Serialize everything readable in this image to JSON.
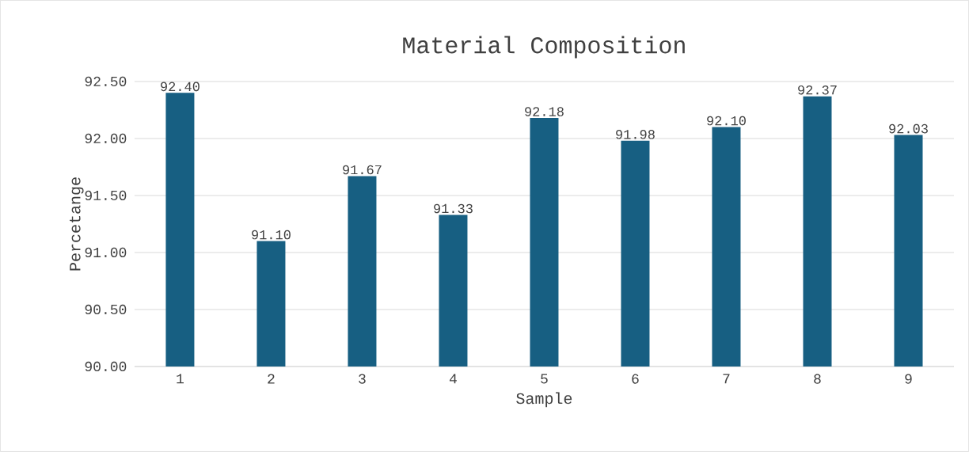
{
  "chart_data": {
    "type": "bar",
    "title": "Material Composition",
    "xlabel": "Sample",
    "ylabel": "Percetange",
    "categories": [
      "1",
      "2",
      "3",
      "4",
      "5",
      "6",
      "7",
      "8",
      "9"
    ],
    "values": [
      92.4,
      91.1,
      91.67,
      91.33,
      92.18,
      91.98,
      92.1,
      92.37,
      92.03
    ],
    "value_labels": [
      "92.40",
      "91.10",
      "91.67",
      "91.33",
      "92.18",
      "91.98",
      "92.10",
      "92.37",
      "92.03"
    ],
    "color": "#175f82",
    "ylim": [
      90,
      92.5
    ],
    "yticks": [
      {
        "value": 90,
        "label": "90.00"
      },
      {
        "value": 90.5,
        "label": "90.50"
      },
      {
        "value": 91,
        "label": "91.00"
      },
      {
        "value": 91.5,
        "label": "91.50"
      },
      {
        "value": 92,
        "label": "92.00"
      },
      {
        "value": 92.5,
        "label": "92.50"
      }
    ],
    "grid": "y"
  }
}
